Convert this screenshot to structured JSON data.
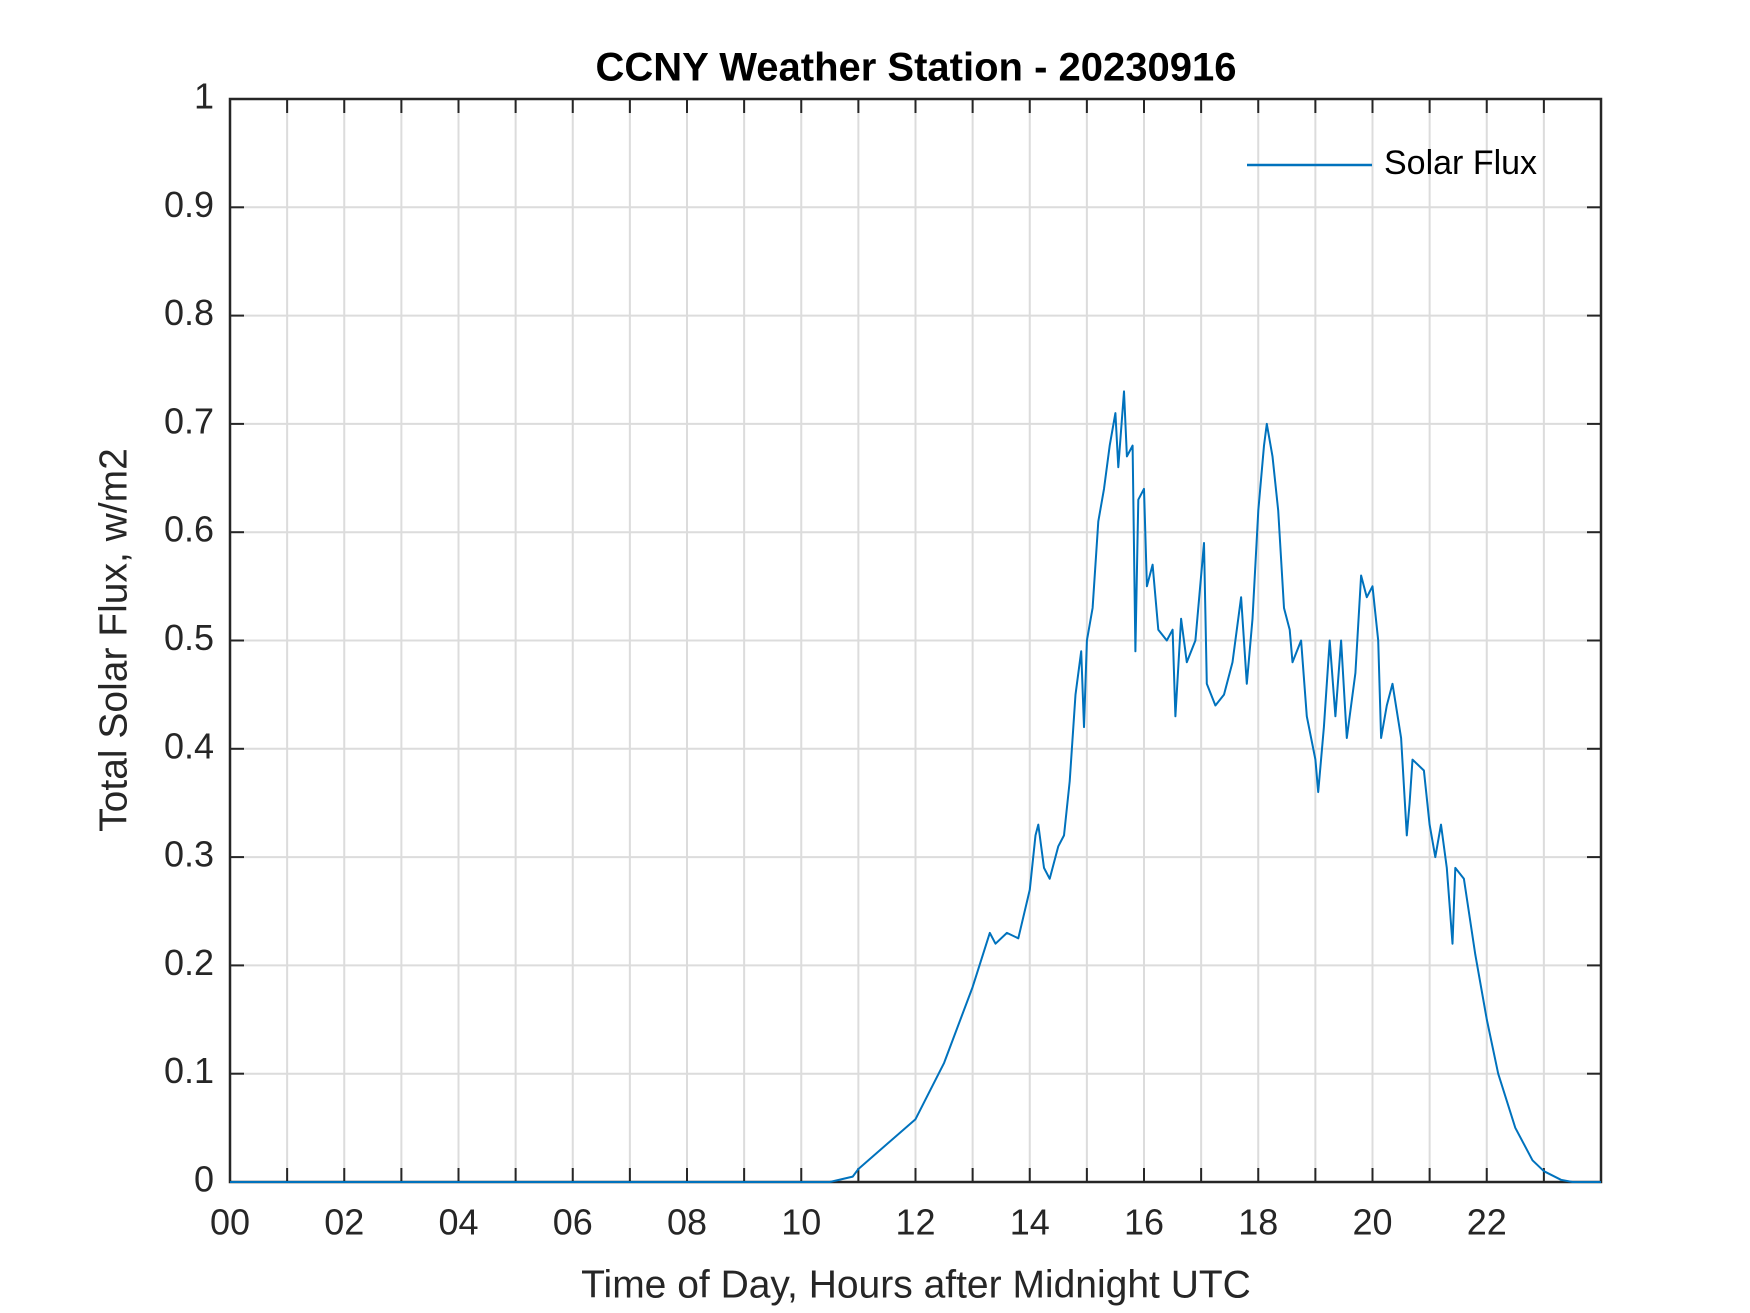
{
  "chart_data": {
    "type": "line",
    "title": "CCNY Weather Station - 20230916",
    "xlabel": "Time of Day, Hours after Midnight UTC",
    "ylabel": "Total Solar Flux, w/m2",
    "xlim": [
      0,
      24
    ],
    "ylim": [
      0,
      1
    ],
    "xticks": [
      {
        "value": 0,
        "label": "00"
      },
      {
        "value": 2,
        "label": "02"
      },
      {
        "value": 4,
        "label": "04"
      },
      {
        "value": 6,
        "label": "06"
      },
      {
        "value": 8,
        "label": "08"
      },
      {
        "value": 10,
        "label": "10"
      },
      {
        "value": 12,
        "label": "12"
      },
      {
        "value": 14,
        "label": "14"
      },
      {
        "value": 16,
        "label": "16"
      },
      {
        "value": 18,
        "label": "18"
      },
      {
        "value": 20,
        "label": "20"
      },
      {
        "value": 22,
        "label": "22"
      }
    ],
    "xminorticks": [
      1,
      3,
      5,
      7,
      9,
      11,
      13,
      15,
      17,
      19,
      21,
      23
    ],
    "yticks": [
      0,
      0.1,
      0.2,
      0.3,
      0.4,
      0.5,
      0.6,
      0.7,
      0.8,
      0.9,
      1
    ],
    "grid": true,
    "legend": "upper right",
    "x": [
      0,
      10.5,
      10.9,
      11.0,
      11.5,
      12.0,
      12.5,
      13.0,
      13.3,
      13.4,
      13.6,
      13.8,
      14.0,
      14.1,
      14.15,
      14.25,
      14.35,
      14.5,
      14.6,
      14.7,
      14.8,
      14.9,
      14.95,
      15.0,
      15.1,
      15.2,
      15.3,
      15.4,
      15.5,
      15.55,
      15.65,
      15.7,
      15.8,
      15.85,
      15.9,
      16.0,
      16.05,
      16.15,
      16.25,
      16.4,
      16.5,
      16.55,
      16.65,
      16.75,
      16.9,
      17.05,
      17.1,
      17.25,
      17.4,
      17.55,
      17.7,
      17.8,
      17.9,
      18.0,
      18.1,
      18.15,
      18.25,
      18.35,
      18.45,
      18.55,
      18.6,
      18.75,
      18.85,
      19.0,
      19.05,
      19.15,
      19.25,
      19.35,
      19.45,
      19.55,
      19.7,
      19.8,
      19.9,
      20.0,
      20.1,
      20.15,
      20.25,
      20.35,
      20.5,
      20.6,
      20.65,
      20.7,
      20.9,
      21.0,
      21.1,
      21.2,
      21.3,
      21.4,
      21.45,
      21.6,
      21.8,
      22.0,
      22.2,
      22.5,
      22.8,
      23.0,
      23.3,
      23.5,
      24
    ],
    "series": [
      {
        "name": "Solar Flux",
        "color": "#0072bd",
        "values": [
          0,
          0,
          0.005,
          0.012,
          0.035,
          0.058,
          0.11,
          0.18,
          0.23,
          0.22,
          0.23,
          0.225,
          0.27,
          0.32,
          0.33,
          0.29,
          0.28,
          0.31,
          0.32,
          0.37,
          0.45,
          0.49,
          0.42,
          0.5,
          0.53,
          0.61,
          0.64,
          0.68,
          0.71,
          0.66,
          0.73,
          0.67,
          0.68,
          0.49,
          0.63,
          0.64,
          0.55,
          0.57,
          0.51,
          0.5,
          0.51,
          0.43,
          0.52,
          0.48,
          0.5,
          0.59,
          0.46,
          0.44,
          0.45,
          0.48,
          0.54,
          0.46,
          0.52,
          0.62,
          0.68,
          0.7,
          0.67,
          0.62,
          0.53,
          0.51,
          0.48,
          0.5,
          0.43,
          0.39,
          0.36,
          0.42,
          0.5,
          0.43,
          0.5,
          0.41,
          0.47,
          0.56,
          0.54,
          0.55,
          0.5,
          0.41,
          0.44,
          0.46,
          0.41,
          0.32,
          0.35,
          0.39,
          0.38,
          0.33,
          0.3,
          0.33,
          0.29,
          0.22,
          0.29,
          0.28,
          0.21,
          0.15,
          0.1,
          0.05,
          0.02,
          0.01,
          0.002,
          0,
          0
        ]
      }
    ]
  }
}
